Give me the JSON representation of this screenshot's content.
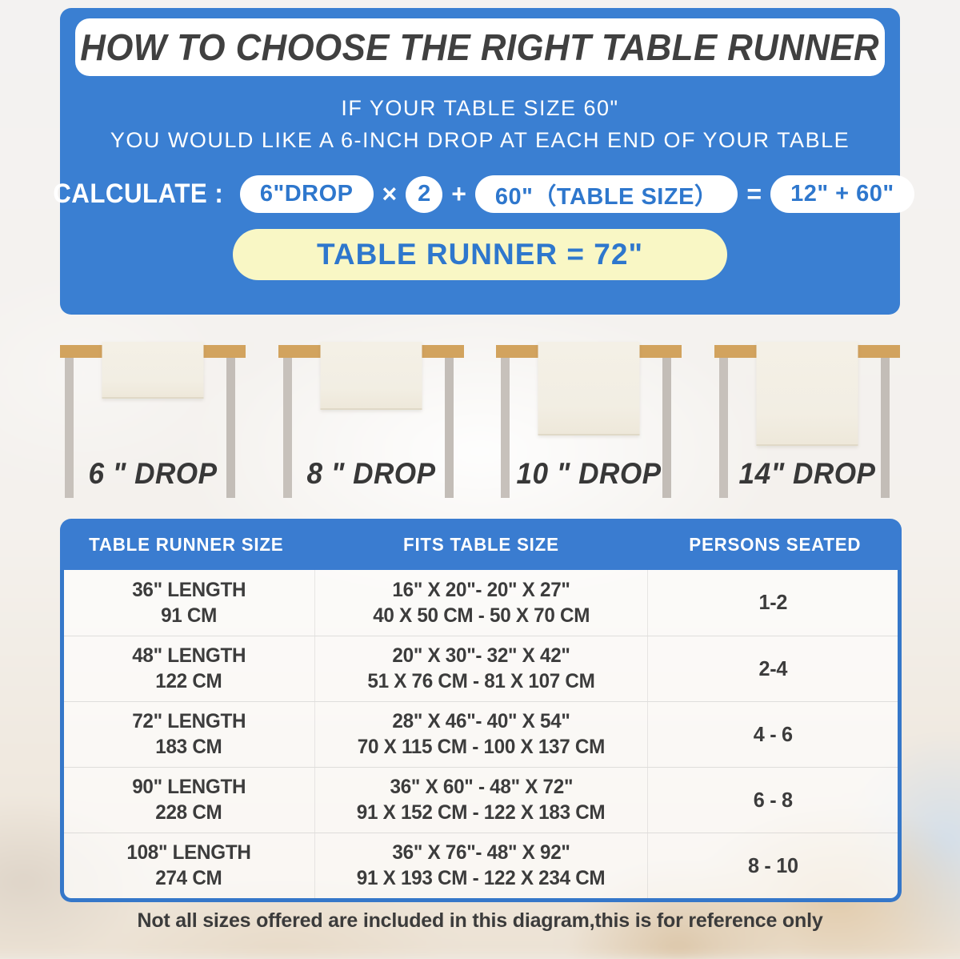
{
  "colors": {
    "panel_blue": "#3a7fd2",
    "accent_blue_text": "#2e77cd",
    "result_yellow": "#f9f7c5",
    "title_dark": "#404040",
    "wood_tan": "#d2a35e",
    "leg_gray": "#c7c1bb",
    "runner_cream": "#f2eee3"
  },
  "header": {
    "title": "HOW TO CHOOSE THE RIGHT TABLE RUNNER",
    "subtitle_line1": "IF YOUR TABLE SIZE 60\"",
    "subtitle_line2": "YOU WOULD LIKE A 6-INCH DROP AT EACH END OF YOUR TABLE"
  },
  "calculation": {
    "label": "CALCULATE :",
    "drop_pill": "6\"DROP",
    "times": "×",
    "multiplier": "2",
    "plus": "+",
    "size_pill": "60\"（TABLE SIZE）",
    "equals": "=",
    "result_pill": "12\" + 60\"",
    "final_result": "TABLE RUNNER = 72\""
  },
  "drop_examples": [
    {
      "label": "6 \" DROP"
    },
    {
      "label": "8 \" DROP"
    },
    {
      "label": "10 \" DROP"
    },
    {
      "label": "14\" DROP"
    }
  ],
  "size_chart": {
    "headers": [
      "TABLE RUNNER SIZE",
      "FITS TABLE SIZE",
      "PERSONS SEATED"
    ],
    "rows": [
      {
        "length_in": "36\" LENGTH",
        "length_cm": "91 CM",
        "fits_in": "16\" X 20\"- 20\" X 27\"",
        "fits_cm": "40 X 50 CM - 50 X 70 CM",
        "persons": "1-2"
      },
      {
        "length_in": "48\" LENGTH",
        "length_cm": "122 CM",
        "fits_in": "20\" X 30\"- 32\" X 42\"",
        "fits_cm": "51 X 76 CM - 81 X 107 CM",
        "persons": "2-4"
      },
      {
        "length_in": "72\" LENGTH",
        "length_cm": "183 CM",
        "fits_in": "28\" X 46\"- 40\" X 54\"",
        "fits_cm": "70 X 115 CM - 100 X 137 CM",
        "persons": "4 - 6"
      },
      {
        "length_in": "90\" LENGTH",
        "length_cm": "228 CM",
        "fits_in": "36\" X 60\" - 48\" X 72\"",
        "fits_cm": "91 X 152 CM - 122 X 183 CM",
        "persons": "6 - 8"
      },
      {
        "length_in": "108\" LENGTH",
        "length_cm": "274 CM",
        "fits_in": "36\" X 76\"- 48\" X 92\"",
        "fits_cm": "91 X 193 CM - 122 X 234 CM",
        "persons": "8 - 10"
      }
    ]
  },
  "footer": {
    "note": "Not all sizes offered are included in this diagram,this is for reference only"
  }
}
